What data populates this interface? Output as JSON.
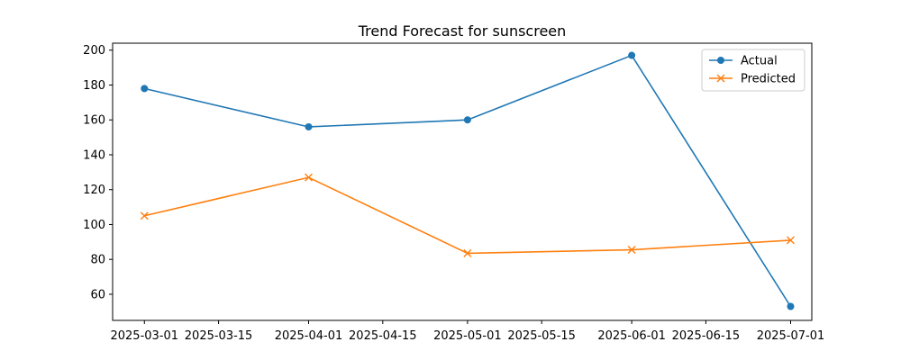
{
  "chart_data": {
    "type": "line",
    "title": "Trend Forecast for sunscreen",
    "xlabel": "",
    "ylabel": "",
    "x": [
      "2025-03-01",
      "2025-04-01",
      "2025-05-01",
      "2025-06-01",
      "2025-07-01"
    ],
    "series": [
      {
        "name": "Actual",
        "values": [
          178,
          156,
          160,
          197,
          53
        ],
        "color": "#1f77b4",
        "marker": "circle"
      },
      {
        "name": "Predicted",
        "values": [
          105,
          127,
          83.5,
          85.5,
          91
        ],
        "color": "#ff7f0e",
        "marker": "x"
      }
    ],
    "xlim": [
      "2025-02-23",
      "2025-07-05"
    ],
    "ylim": [
      45,
      204
    ],
    "x_ticks": [
      "2025-03-01",
      "2025-03-15",
      "2025-04-01",
      "2025-04-15",
      "2025-05-01",
      "2025-05-15",
      "2025-06-01",
      "2025-06-15",
      "2025-07-01"
    ],
    "y_ticks": [
      60,
      80,
      100,
      120,
      140,
      160,
      180,
      200
    ],
    "grid": false,
    "legend_position": "top-right"
  }
}
